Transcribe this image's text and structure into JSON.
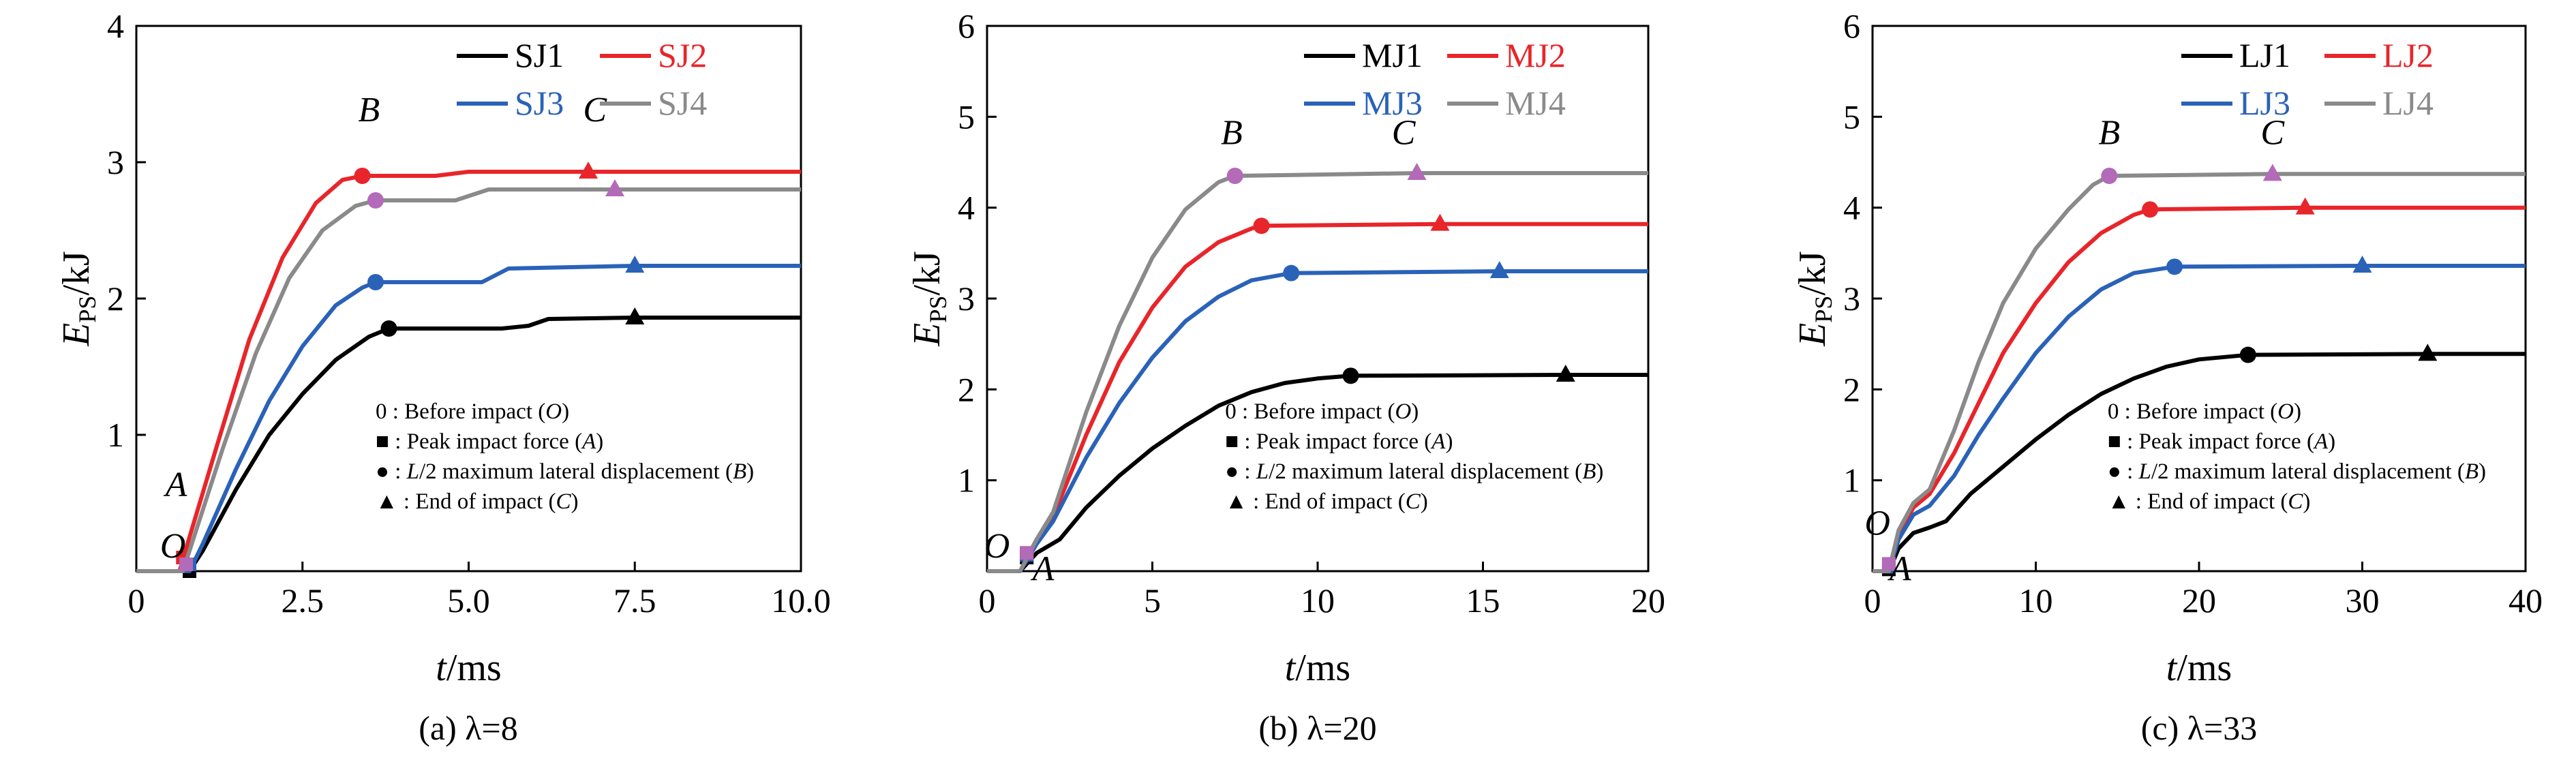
{
  "common": {
    "ylabel_main": "E",
    "ylabel_sub": "PS",
    "ylabel_unit": "/kJ",
    "xlabel_main": "t",
    "xlabel_unit": "/ms",
    "notes": [
      {
        "sym": "0",
        "pre": " : Before impact (",
        "it": "O",
        "post": ")"
      },
      {
        "sym": "■",
        "pre": " : Peak impact force (",
        "it": "A",
        "post": ")"
      },
      {
        "sym": "●",
        "pre": " : ",
        "it": "L",
        "post": "/2 maximum lateral displacement (",
        "it2": "B",
        "post2": ")"
      },
      {
        "sym": "▲",
        "pre": " : End of impact (",
        "it": "C",
        "post": ")"
      }
    ]
  },
  "chart_data": [
    {
      "type": "line",
      "caption": "(a) λ=8",
      "xlim": [
        0,
        10
      ],
      "ylim": [
        0,
        4
      ],
      "xticks": [
        0,
        2.5,
        5,
        7.5,
        10
      ],
      "xtick_labels": [
        "0",
        "2.5",
        "5.0",
        "7.5",
        "10.0"
      ],
      "yticks": [
        1,
        2,
        3,
        4
      ],
      "ytick_labels": [
        "1",
        "2",
        "3",
        "4"
      ],
      "point_labels": {
        "O": [
          0.55,
          0.1
        ],
        "A": [
          0.6,
          0.55
        ],
        "B": [
          3.5,
          3.3
        ],
        "C": [
          6.9,
          3.3
        ]
      },
      "series": [
        {
          "name": "SJ1",
          "color": "#000000",
          "points": [
            [
              0,
              0
            ],
            [
              0.8,
              0
            ],
            [
              1.0,
              0.15
            ],
            [
              1.5,
              0.6
            ],
            [
              2.0,
              1.0
            ],
            [
              2.5,
              1.3
            ],
            [
              3.0,
              1.55
            ],
            [
              3.5,
              1.72
            ],
            [
              3.8,
              1.78
            ],
            [
              4.5,
              1.78
            ],
            [
              5.5,
              1.78
            ],
            [
              5.9,
              1.8
            ],
            [
              6.2,
              1.85
            ],
            [
              7.5,
              1.86
            ],
            [
              10,
              1.86
            ]
          ],
          "peak": [
            0.8,
            0
          ],
          "B": [
            3.8,
            1.78
          ],
          "C": [
            7.5,
            1.86
          ]
        },
        {
          "name": "SJ2",
          "color": "#e8252a",
          "points": [
            [
              0,
              0
            ],
            [
              0.65,
              0
            ],
            [
              0.8,
              0.25
            ],
            [
              1.2,
              0.9
            ],
            [
              1.7,
              1.7
            ],
            [
              2.2,
              2.3
            ],
            [
              2.7,
              2.7
            ],
            [
              3.1,
              2.87
            ],
            [
              3.4,
              2.9
            ],
            [
              4.5,
              2.9
            ],
            [
              5.0,
              2.93
            ],
            [
              6.8,
              2.93
            ],
            [
              10,
              2.93
            ]
          ],
          "peak": [
            0.7,
            0.1
          ],
          "B": [
            3.4,
            2.9
          ],
          "C": [
            6.8,
            2.93
          ]
        },
        {
          "name": "SJ3",
          "color": "#2a62b8",
          "points": [
            [
              0,
              0
            ],
            [
              0.8,
              0
            ],
            [
              1.0,
              0.2
            ],
            [
              1.5,
              0.75
            ],
            [
              2.0,
              1.25
            ],
            [
              2.5,
              1.65
            ],
            [
              3.0,
              1.95
            ],
            [
              3.4,
              2.08
            ],
            [
              3.6,
              2.12
            ],
            [
              5.2,
              2.12
            ],
            [
              5.6,
              2.22
            ],
            [
              7.5,
              2.24
            ],
            [
              10,
              2.24
            ]
          ],
          "peak": [
            0.8,
            0.05
          ],
          "B": [
            3.6,
            2.12
          ],
          "C": [
            7.5,
            2.24
          ]
        },
        {
          "name": "SJ4",
          "color": "#8a8a8a",
          "points": [
            [
              0,
              0
            ],
            [
              0.7,
              0
            ],
            [
              0.9,
              0.3
            ],
            [
              1.3,
              0.9
            ],
            [
              1.8,
              1.6
            ],
            [
              2.3,
              2.15
            ],
            [
              2.8,
              2.5
            ],
            [
              3.3,
              2.68
            ],
            [
              3.6,
              2.72
            ],
            [
              4.8,
              2.72
            ],
            [
              5.3,
              2.8
            ],
            [
              7.2,
              2.8
            ],
            [
              10,
              2.8
            ]
          ],
          "peak": [
            0.75,
            0.05
          ],
          "B": [
            3.6,
            2.72
          ],
          "C": [
            7.2,
            2.8
          ]
        }
      ]
    },
    {
      "type": "line",
      "caption": "(b) λ=20",
      "xlim": [
        0,
        20
      ],
      "ylim": [
        0,
        6
      ],
      "xticks": [
        0,
        5,
        10,
        15,
        20
      ],
      "xtick_labels": [
        "0",
        "5",
        "10",
        "15",
        "20"
      ],
      "yticks": [
        1,
        2,
        3,
        4,
        5,
        6
      ],
      "ytick_labels": [
        "1",
        "2",
        "3",
        "4",
        "5",
        "6"
      ],
      "point_labels": {
        "O": [
          0.3,
          0.15
        ],
        "A": [
          1.7,
          -0.1
        ],
        "B": [
          7.4,
          4.7
        ],
        "C": [
          12.6,
          4.7
        ]
      },
      "series": [
        {
          "name": "MJ1",
          "color": "#000000",
          "points": [
            [
              0,
              0
            ],
            [
              1.0,
              0
            ],
            [
              1.5,
              0.2
            ],
            [
              2.2,
              0.35
            ],
            [
              3,
              0.7
            ],
            [
              4,
              1.05
            ],
            [
              5,
              1.35
            ],
            [
              6,
              1.6
            ],
            [
              7,
              1.82
            ],
            [
              8,
              1.97
            ],
            [
              9,
              2.07
            ],
            [
              10,
              2.12
            ],
            [
              11,
              2.15
            ],
            [
              17.5,
              2.16
            ],
            [
              20,
              2.16
            ]
          ],
          "peak": [
            1.2,
            0.15
          ],
          "B": [
            11,
            2.15
          ],
          "C": [
            17.5,
            2.16
          ]
        },
        {
          "name": "MJ2",
          "color": "#e8252a",
          "points": [
            [
              0,
              0
            ],
            [
              1.0,
              0
            ],
            [
              1.5,
              0.35
            ],
            [
              2,
              0.6
            ],
            [
              3,
              1.5
            ],
            [
              4,
              2.3
            ],
            [
              5,
              2.9
            ],
            [
              6,
              3.35
            ],
            [
              7,
              3.62
            ],
            [
              8,
              3.77
            ],
            [
              8.3,
              3.8
            ],
            [
              13.7,
              3.82
            ],
            [
              20,
              3.82
            ]
          ],
          "peak": [
            1.2,
            0.2
          ],
          "B": [
            8.3,
            3.8
          ],
          "C": [
            13.7,
            3.82
          ]
        },
        {
          "name": "MJ3",
          "color": "#2a62b8",
          "points": [
            [
              0,
              0
            ],
            [
              1.0,
              0
            ],
            [
              1.5,
              0.3
            ],
            [
              2,
              0.55
            ],
            [
              3,
              1.25
            ],
            [
              4,
              1.85
            ],
            [
              5,
              2.35
            ],
            [
              6,
              2.75
            ],
            [
              7,
              3.02
            ],
            [
              8,
              3.2
            ],
            [
              9.2,
              3.28
            ],
            [
              15.5,
              3.3
            ],
            [
              20,
              3.3
            ]
          ],
          "peak": [
            1.2,
            0.18
          ],
          "B": [
            9.2,
            3.28
          ],
          "C": [
            15.5,
            3.3
          ]
        },
        {
          "name": "MJ4",
          "color": "#8a8a8a",
          "points": [
            [
              0,
              0
            ],
            [
              1.0,
              0
            ],
            [
              1.5,
              0.35
            ],
            [
              2,
              0.65
            ],
            [
              3,
              1.75
            ],
            [
              4,
              2.7
            ],
            [
              5,
              3.45
            ],
            [
              6,
              3.98
            ],
            [
              7,
              4.28
            ],
            [
              7.5,
              4.35
            ],
            [
              13,
              4.38
            ],
            [
              20,
              4.38
            ]
          ],
          "peak": [
            1.2,
            0.2
          ],
          "B": [
            7.5,
            4.35
          ],
          "C": [
            13,
            4.38
          ]
        }
      ]
    },
    {
      "type": "line",
      "caption": "(c) λ=33",
      "xlim": [
        0,
        40
      ],
      "ylim": [
        0,
        6
      ],
      "xticks": [
        0,
        10,
        20,
        30,
        40
      ],
      "xtick_labels": [
        "0",
        "10",
        "20",
        "30",
        "40"
      ],
      "yticks": [
        1,
        2,
        3,
        4,
        5,
        6
      ],
      "ytick_labels": [
        "1",
        "2",
        "3",
        "4",
        "5",
        "6"
      ],
      "point_labels": {
        "O": [
          0.3,
          0.4
        ],
        "A": [
          1.7,
          -0.1
        ],
        "B": [
          14.5,
          4.7
        ],
        "C": [
          24.5,
          4.7
        ]
      },
      "series": [
        {
          "name": "LJ1",
          "color": "#000000",
          "points": [
            [
              0,
              0
            ],
            [
              1.0,
              0
            ],
            [
              1.6,
              0.25
            ],
            [
              2.5,
              0.42
            ],
            [
              3.5,
              0.48
            ],
            [
              4.5,
              0.55
            ],
            [
              6,
              0.85
            ],
            [
              8,
              1.15
            ],
            [
              10,
              1.45
            ],
            [
              12,
              1.72
            ],
            [
              14,
              1.95
            ],
            [
              16,
              2.12
            ],
            [
              18,
              2.25
            ],
            [
              20,
              2.33
            ],
            [
              23,
              2.38
            ],
            [
              34,
              2.39
            ],
            [
              40,
              2.39
            ]
          ],
          "peak": [
            1.0,
            0.02
          ],
          "B": [
            23,
            2.38
          ],
          "C": [
            34,
            2.39
          ]
        },
        {
          "name": "LJ2",
          "color": "#e8252a",
          "points": [
            [
              0,
              0
            ],
            [
              1.0,
              0
            ],
            [
              1.6,
              0.4
            ],
            [
              2.5,
              0.7
            ],
            [
              3.5,
              0.85
            ],
            [
              5,
              1.3
            ],
            [
              6.5,
              1.85
            ],
            [
              8,
              2.4
            ],
            [
              10,
              2.95
            ],
            [
              12,
              3.4
            ],
            [
              14,
              3.72
            ],
            [
              16,
              3.92
            ],
            [
              17,
              3.98
            ],
            [
              26.5,
              4.0
            ],
            [
              40,
              4.0
            ]
          ],
          "peak": [
            1.0,
            0.05
          ],
          "B": [
            17,
            3.98
          ],
          "C": [
            26.5,
            4.0
          ]
        },
        {
          "name": "LJ3",
          "color": "#2a62b8",
          "points": [
            [
              0,
              0
            ],
            [
              1.0,
              0
            ],
            [
              1.6,
              0.35
            ],
            [
              2.5,
              0.62
            ],
            [
              3.5,
              0.72
            ],
            [
              5,
              1.05
            ],
            [
              6.5,
              1.5
            ],
            [
              8,
              1.9
            ],
            [
              10,
              2.4
            ],
            [
              12,
              2.8
            ],
            [
              14,
              3.1
            ],
            [
              16,
              3.28
            ],
            [
              18.5,
              3.35
            ],
            [
              30,
              3.36
            ],
            [
              40,
              3.36
            ]
          ],
          "peak": [
            1.0,
            0.05
          ],
          "B": [
            18.5,
            3.35
          ],
          "C": [
            30,
            3.36
          ]
        },
        {
          "name": "LJ4",
          "color": "#8a8a8a",
          "points": [
            [
              0,
              0
            ],
            [
              1.0,
              0
            ],
            [
              1.6,
              0.45
            ],
            [
              2.5,
              0.75
            ],
            [
              3.5,
              0.9
            ],
            [
              5,
              1.55
            ],
            [
              6.5,
              2.3
            ],
            [
              8,
              2.95
            ],
            [
              10,
              3.55
            ],
            [
              12,
              3.98
            ],
            [
              13.5,
              4.25
            ],
            [
              14.5,
              4.35
            ],
            [
              24.5,
              4.37
            ],
            [
              40,
              4.37
            ]
          ],
          "peak": [
            1.0,
            0.08
          ],
          "B": [
            14.5,
            4.35
          ],
          "C": [
            24.5,
            4.37
          ]
        }
      ]
    }
  ]
}
